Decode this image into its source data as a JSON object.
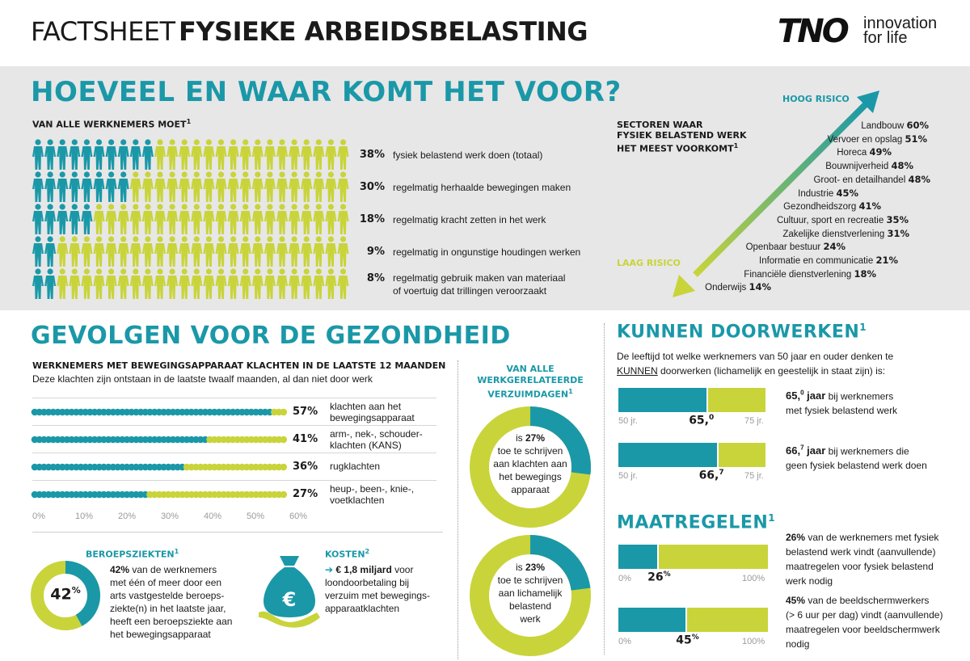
{
  "header": {
    "title_light": "FACTSHEET",
    "title_bold": "FYSIEKE ARBEIDSBELASTING",
    "logo_text": "TNO",
    "tagline_1": "innovation",
    "tagline_2": "for life"
  },
  "colors": {
    "teal": "#1a98a8",
    "lime": "#c8d43a",
    "band": "#e7e7e7"
  },
  "section1": {
    "title": "HOEVEEL EN WAAR KOMT HET VOOR?",
    "subtitle": "VAN ALLE WERKNEMERS MOET",
    "subtitle_sup": "1",
    "rows": [
      {
        "pct": "38%",
        "label": "fysiek belastend werk doen (totaal)",
        "filled": 10
      },
      {
        "pct": "30%",
        "label": "regelmatig herhaalde bewegingen maken",
        "filled": 8
      },
      {
        "pct": "18%",
        "label": "regelmatig kracht zetten in het werk",
        "filled": 5
      },
      {
        "pct": "9%",
        "label": "regelmatig in ongunstige houdingen werken",
        "filled": 2
      },
      {
        "pct": "8%",
        "label": "regelmatig gebruik maken van materiaal",
        "label2": "of voertuig dat trillingen veroorzaakt",
        "filled": 2
      }
    ]
  },
  "sectors": {
    "title_1": "SECTOREN WAAR",
    "title_2": "FYSIEK BELASTEND WERK",
    "title_3": "HET MEEST VOORKOMT",
    "title_sup": "1",
    "high": "HOOG RISICO",
    "low": "LAAG RISICO",
    "items": [
      {
        "name": "Landbouw",
        "pct": "60%"
      },
      {
        "name": "Vervoer en opslag",
        "pct": "51%"
      },
      {
        "name": "Horeca",
        "pct": "49%"
      },
      {
        "name": "Bouwnijverheid",
        "pct": "48%"
      },
      {
        "name": "Groot- en detailhandel",
        "pct": "48%"
      },
      {
        "name": "Industrie",
        "pct": "45%"
      },
      {
        "name": "Gezondheidszorg",
        "pct": "41%"
      },
      {
        "name": "Cultuur, sport en recreatie",
        "pct": "35%"
      },
      {
        "name": "Zakelijke dienstverlening",
        "pct": "31%"
      },
      {
        "name": "Openbaar bestuur",
        "pct": "24%"
      },
      {
        "name": "Informatie en communicatie",
        "pct": "21%"
      },
      {
        "name": "Financiële dienstverlening",
        "pct": "18%"
      },
      {
        "name": "Onderwijs",
        "pct": "14%"
      }
    ]
  },
  "section2": {
    "title": "GEVOLGEN VOOR DE GEZONDHEID",
    "complaints_title": "WERKNEMERS MET BEWEGINGSAPPARAAT KLACHTEN IN DE LAATSTE 12 MAANDEN",
    "complaints_sub": "Deze klachten zijn ontstaan in de laatste twaalf maanden, al dan niet door werk",
    "complaints": [
      {
        "pct": "57%",
        "value": 57,
        "label": "klachten aan het",
        "label2": "bewegingsapparaat"
      },
      {
        "pct": "41%",
        "value": 41,
        "label": "arm-, nek-, schouder-",
        "label2": "klachten (KANS)"
      },
      {
        "pct": "36%",
        "value": 36,
        "label": "rugklachten",
        "label2": ""
      },
      {
        "pct": "27%",
        "value": 27,
        "label": "heup-, been-, knie-,",
        "label2": "voetklachten"
      }
    ],
    "axis_ticks": [
      "0%",
      "10%",
      "20%",
      "30%",
      "40%",
      "50%",
      "60%"
    ],
    "absence_title_1": "VAN ALLE",
    "absence_title_2": "WERKGERELATEERDE",
    "absence_title_3": "VERZUIMDAGEN",
    "absence_sup": "1",
    "donut1": {
      "value": 27,
      "line1_pre": "is ",
      "line1_pct": "27%",
      "line2": "toe te schrijven",
      "line3": "aan klachten aan",
      "line4": "het bewegings",
      "line5": "apparaat"
    },
    "donut2": {
      "value": 23,
      "line1_pre": "is ",
      "line1_pct": "23%",
      "line2": "toe te schrijven",
      "line3": "aan lichamelijk",
      "line4": "belastend",
      "line5": "werk"
    },
    "beroeps": {
      "title": "BEROEPSZIEKTEN",
      "sup": "1",
      "value": 42,
      "center": "42",
      "center_sup": "%",
      "lines": [
        "42% van de werknemers",
        "met één of meer door een",
        "arts vastgestelde beroeps-",
        "ziekte(n) in het laatste jaar,",
        "heeft een beroepsziekte aan",
        "het bewegingsapparaat"
      ]
    },
    "kosten": {
      "title": "KOSTEN",
      "sup": "2",
      "arrow": "➔",
      "amount": "€ 1,8 miljard",
      "rest1": " voor",
      "lines": [
        "loondoorbetaling bij",
        "verzuim met bewegings-",
        "apparaatklachten"
      ],
      "euro": "€"
    }
  },
  "section3": {
    "title": "KUNNEN DOORWERKEN",
    "sup": "1",
    "intro1": "De leeftijd tot welke werknemers van 50 jaar en ouder denken te",
    "intro2_u": "KUNNEN",
    "intro2_rest": " doorwerken (lichamelijk en geestelijk in staat zijn) is:",
    "bars": [
      {
        "value": 65.0,
        "marker_main": "65,",
        "marker_sup": "0",
        "min": "50 jr.",
        "max": "75 jr.",
        "desc_main": "65,",
        "desc_sup": "0",
        "desc_unit": " jaar",
        "desc_rest": " bij werknemers",
        "desc_line2": "met fysiek belastend werk"
      },
      {
        "value": 66.7,
        "marker_main": "66,",
        "marker_sup": "7",
        "min": "50 jr.",
        "max": "75 jr.",
        "desc_main": "66,",
        "desc_sup": "7",
        "desc_unit": " jaar",
        "desc_rest": " bij werknemers die",
        "desc_line2": "geen fysiek belastend werk doen"
      }
    ]
  },
  "section4": {
    "title": "MAATREGELEN",
    "sup": "1",
    "bars": [
      {
        "value": 26,
        "marker_main": "26",
        "marker_sup": "%",
        "min": "0%",
        "max": "100%",
        "pct": "26%",
        "lines": [
          " van de werknemers met fysiek",
          "belastend werk vindt (aanvullende)",
          "maatregelen voor fysiek belastend",
          "werk nodig"
        ]
      },
      {
        "value": 45,
        "marker_main": "45",
        "marker_sup": "%",
        "min": "0%",
        "max": "100%",
        "pct": "45%",
        "lines": [
          " van de beeldschermwerkers",
          "(> 6 uur per dag) vindt (aanvullende)",
          "maatregelen voor beeldschermwerk",
          "nodig"
        ]
      }
    ]
  }
}
